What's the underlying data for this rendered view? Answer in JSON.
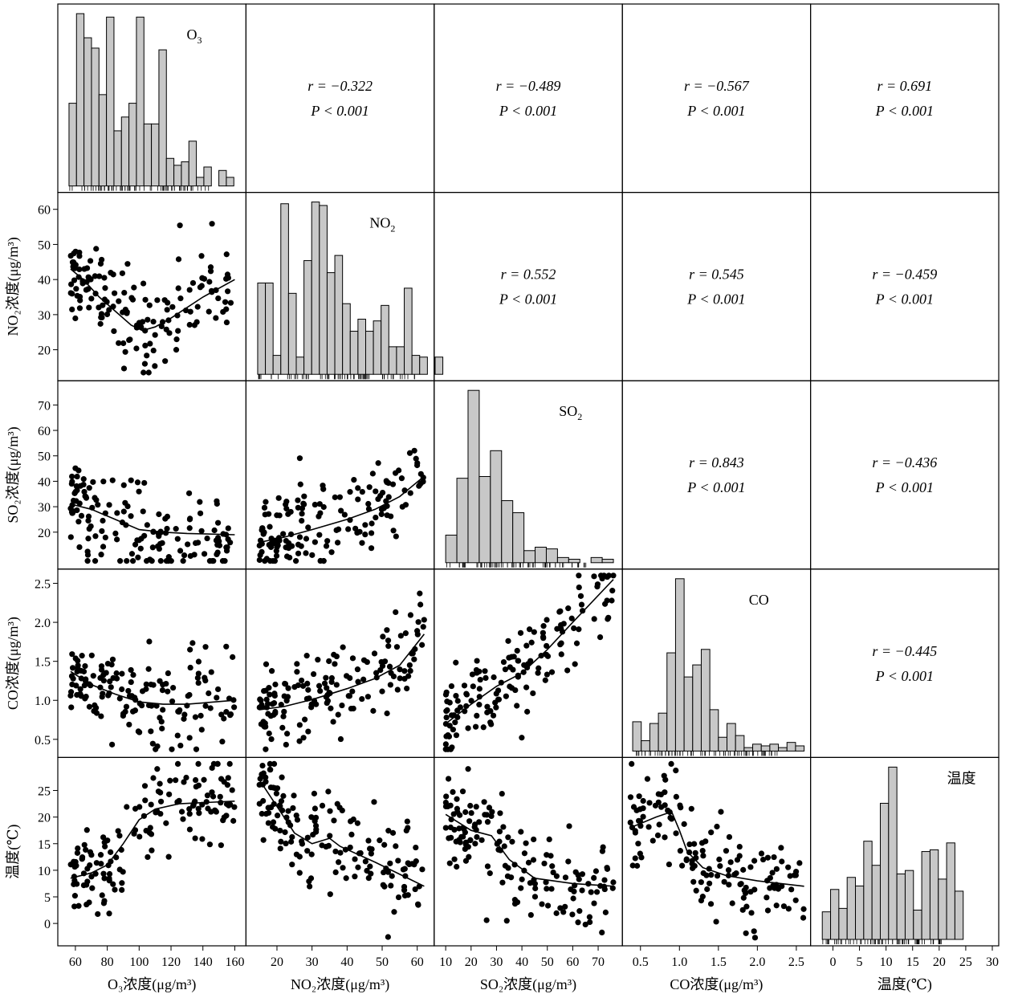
{
  "chart_data": {
    "type": "scatter-matrix",
    "title": "",
    "variables": [
      {
        "key": "O3",
        "label": "O3",
        "sub": "3",
        "axis_label": "O₃浓度(μg/m³)",
        "lim": [
          53,
          163
        ],
        "ticks": [
          60,
          80,
          100,
          120,
          140,
          160
        ]
      },
      {
        "key": "NO2",
        "label": "NO2",
        "sub": "2",
        "axis_label": "NO₂浓度(μg/m³)",
        "lim": [
          13,
          63
        ],
        "ticks": [
          20,
          30,
          40,
          50,
          60
        ]
      },
      {
        "key": "SO2",
        "label": "SO2",
        "sub": "2",
        "axis_label": "SO₂浓度(μg/m³)",
        "lim": [
          8,
          77
        ],
        "ticks": [
          10,
          20,
          30,
          40,
          50,
          60,
          70
        ]
      },
      {
        "key": "CO",
        "label": "CO",
        "sub": "",
        "axis_label": "CO浓度(μg/m³)",
        "lim": [
          0.35,
          2.6
        ],
        "ticks": [
          0.5,
          1.0,
          1.5,
          2.0,
          2.5
        ]
      },
      {
        "key": "TEMP",
        "label": "温度",
        "sub": "",
        "axis_label": "温度(℃)",
        "lim": [
          -3,
          30
        ],
        "ticks": [
          0,
          5,
          10,
          15,
          20,
          25,
          30
        ]
      }
    ],
    "correlations": [
      {
        "i": 0,
        "j": 1,
        "r": "r = −0.322",
        "p": "P < 0.001"
      },
      {
        "i": 0,
        "j": 2,
        "r": "r = −0.489",
        "p": "P < 0.001"
      },
      {
        "i": 0,
        "j": 3,
        "r": "r = −0.567",
        "p": "P < 0.001"
      },
      {
        "i": 0,
        "j": 4,
        "r": "r = 0.691",
        "p": "P < 0.001"
      },
      {
        "i": 1,
        "j": 2,
        "r": "r = 0.552",
        "p": "P < 0.001"
      },
      {
        "i": 1,
        "j": 3,
        "r": "r = 0.545",
        "p": "P < 0.001"
      },
      {
        "i": 1,
        "j": 4,
        "r": "r = −0.459",
        "p": "P < 0.001"
      },
      {
        "i": 2,
        "j": 3,
        "r": "r = 0.843",
        "p": "P < 0.001"
      },
      {
        "i": 2,
        "j": 4,
        "r": "r = −0.436",
        "p": "P < 0.001"
      },
      {
        "i": 3,
        "j": 4,
        "r": "r = −0.445",
        "p": "P < 0.001"
      }
    ],
    "histograms": [
      {
        "var": 0,
        "start": 56,
        "width": 4.7,
        "counts": [
          0.48,
          1.0,
          0.86,
          0.8,
          0.53,
          0.98,
          0.32,
          0.4,
          0.48,
          0.98,
          0.36,
          0.36,
          0.79,
          0.16,
          0.12,
          0.14,
          0.26,
          0.05,
          0.11,
          0.0,
          0.09,
          0.05
        ]
      },
      {
        "var": 1,
        "start": 14.5,
        "width": 2.2,
        "counts": [
          0.53,
          0.53,
          0.11,
          0.99,
          0.47,
          0.1,
          0.66,
          1.0,
          0.98,
          0.59,
          0.69,
          0.41,
          0.25,
          0.32,
          0.25,
          0.31,
          0.4,
          0.16,
          0.16,
          0.5,
          0.11,
          0.1,
          0.0,
          0.1
        ]
      },
      {
        "var": 2,
        "start": 10,
        "width": 4.4,
        "counts": [
          0.16,
          0.49,
          1.0,
          0.5,
          0.65,
          0.36,
          0.29,
          0.07,
          0.09,
          0.08,
          0.03,
          0.02,
          0.0,
          0.03,
          0.02
        ]
      },
      {
        "var": 3,
        "start": 0.4,
        "width": 0.11,
        "counts": [
          0.17,
          0.06,
          0.16,
          0.22,
          0.57,
          1.0,
          0.43,
          0.5,
          0.59,
          0.24,
          0.08,
          0.16,
          0.09,
          0.02,
          0.04,
          0.03,
          0.04,
          0.02,
          0.05,
          0.03
        ]
      },
      {
        "var": 4,
        "start": -2,
        "width": 1.56,
        "counts": [
          0.16,
          0.29,
          0.18,
          0.36,
          0.31,
          0.57,
          0.43,
          0.79,
          1.0,
          0.38,
          0.4,
          0.17,
          0.51,
          0.52,
          0.35,
          0.56,
          0.28
        ]
      }
    ],
    "smooth_curves": {
      "1_0": [
        [
          57,
          43
        ],
        [
          65,
          40
        ],
        [
          75,
          35
        ],
        [
          85,
          31
        ],
        [
          95,
          27
        ],
        [
          102,
          25.5
        ],
        [
          110,
          26.5
        ],
        [
          120,
          29
        ],
        [
          140,
          35
        ],
        [
          160,
          40
        ]
      ],
      "2_0": [
        [
          57,
          31
        ],
        [
          70,
          29
        ],
        [
          85,
          25
        ],
        [
          100,
          21
        ],
        [
          115,
          20
        ],
        [
          130,
          19.5
        ],
        [
          160,
          19
        ]
      ],
      "2_1": [
        [
          15,
          16
        ],
        [
          22,
          18
        ],
        [
          30,
          21
        ],
        [
          40,
          25
        ],
        [
          48,
          29
        ],
        [
          55,
          34
        ],
        [
          62,
          42
        ]
      ],
      "3_0": [
        [
          57,
          1.37
        ],
        [
          70,
          1.2
        ],
        [
          85,
          1.08
        ],
        [
          100,
          0.98
        ],
        [
          115,
          0.95
        ],
        [
          130,
          0.95
        ],
        [
          160,
          1.0
        ]
      ],
      "3_1": [
        [
          15,
          0.88
        ],
        [
          22,
          0.92
        ],
        [
          30,
          1.01
        ],
        [
          40,
          1.15
        ],
        [
          48,
          1.28
        ],
        [
          55,
          1.45
        ],
        [
          62,
          1.85
        ]
      ],
      "3_2": [
        [
          10,
          0.7
        ],
        [
          20,
          0.95
        ],
        [
          30,
          1.18
        ],
        [
          40,
          1.35
        ],
        [
          50,
          1.65
        ],
        [
          60,
          2.0
        ],
        [
          76,
          2.55
        ]
      ],
      "4_0": [
        [
          57,
          8.5
        ],
        [
          70,
          9.5
        ],
        [
          80,
          11
        ],
        [
          90,
          15
        ],
        [
          100,
          19.5
        ],
        [
          110,
          21.5
        ],
        [
          125,
          22.5
        ],
        [
          160,
          23
        ]
      ],
      "4_1": [
        [
          15,
          27
        ],
        [
          20,
          22
        ],
        [
          25,
          17
        ],
        [
          30,
          15
        ],
        [
          35,
          16
        ],
        [
          38,
          14.5
        ],
        [
          48,
          11.5
        ],
        [
          62,
          7
        ]
      ],
      "4_2": [
        [
          10,
          20.5
        ],
        [
          20,
          17.5
        ],
        [
          28,
          16.5
        ],
        [
          35,
          12
        ],
        [
          45,
          8.5
        ],
        [
          60,
          7.5
        ],
        [
          76,
          7
        ]
      ],
      "4_3": [
        [
          0.37,
          18
        ],
        [
          0.7,
          20
        ],
        [
          0.9,
          21
        ],
        [
          1.0,
          17.5
        ],
        [
          1.1,
          13.5
        ],
        [
          1.3,
          10.5
        ],
        [
          1.6,
          9
        ],
        [
          2.0,
          8
        ],
        [
          2.6,
          7
        ]
      ]
    },
    "scatter_counts": {
      "1_0": 150,
      "2_0": 150,
      "2_1": 150,
      "3_0": 150,
      "3_1": 150,
      "3_2": 150,
      "4_0": 150,
      "4_1": 150,
      "4_2": 150,
      "4_3": 150
    },
    "grid": false,
    "legend": "none"
  }
}
